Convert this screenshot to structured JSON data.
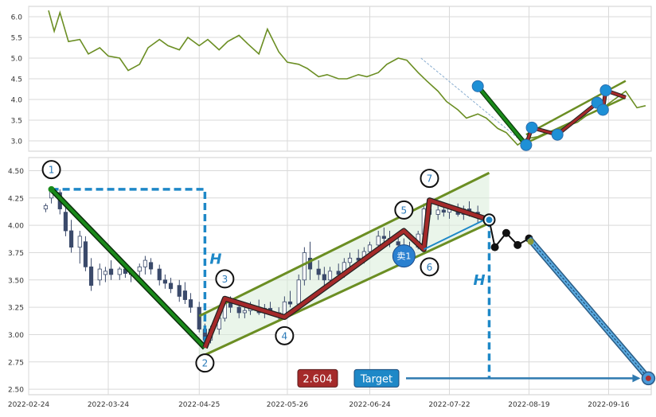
{
  "chart_data": [
    {
      "type": "line",
      "panel": "overview",
      "title": "",
      "xlabel": "",
      "ylabel": "",
      "ylim": [
        2.75,
        6.25
      ],
      "yticks": [
        "3.0",
        "3.5",
        "4.0",
        "4.5",
        "5.0",
        "5.5",
        "6.0"
      ],
      "grid": true,
      "colors": {
        "line": "#6b8e23",
        "trend": "#1a8a1a",
        "zigzag": "#a52a2a",
        "pivot": "#1e90d6",
        "channel": "#6b8e23"
      },
      "series": [
        {
          "x": [
            "2022-03-03",
            "2022-03-05",
            "2022-03-07",
            "2022-03-10",
            "2022-03-14",
            "2022-03-17",
            "2022-03-21",
            "2022-03-24",
            "2022-03-28",
            "2022-03-31",
            "2022-04-04",
            "2022-04-07",
            "2022-04-11",
            "2022-04-14",
            "2022-04-18",
            "2022-04-21",
            "2022-04-25",
            "2022-04-28",
            "2022-05-02",
            "2022-05-05",
            "2022-05-09",
            "2022-05-12",
            "2022-05-16",
            "2022-05-19",
            "2022-05-23",
            "2022-05-26",
            "2022-05-30",
            "2022-06-02",
            "2022-06-06",
            "2022-06-09",
            "2022-06-13",
            "2022-06-16",
            "2022-06-20",
            "2022-06-23",
            "2022-06-27",
            "2022-06-30",
            "2022-07-04",
            "2022-07-07",
            "2022-07-11",
            "2022-07-14",
            "2022-07-18",
            "2022-07-21",
            "2022-07-25",
            "2022-07-28",
            "2022-08-01",
            "2022-08-04",
            "2022-08-08",
            "2022-08-11",
            "2022-08-15",
            "2022-08-18",
            "2022-08-22",
            "2022-08-25",
            "2022-08-29",
            "2022-09-01",
            "2022-09-05",
            "2022-09-08",
            "2022-09-12",
            "2022-09-15",
            "2022-09-19",
            "2022-09-22",
            "2022-09-26",
            "2022-09-29"
          ],
          "values": [
            6.15,
            5.65,
            6.1,
            5.4,
            5.45,
            5.1,
            5.25,
            5.05,
            5.0,
            4.7,
            4.85,
            5.25,
            5.45,
            5.3,
            5.2,
            5.5,
            5.3,
            5.45,
            5.2,
            5.4,
            5.55,
            5.35,
            5.1,
            5.7,
            5.15,
            4.9,
            4.85,
            4.75,
            4.55,
            4.6,
            4.5,
            4.5,
            4.6,
            4.55,
            4.65,
            4.85,
            5.0,
            4.95,
            4.65,
            4.45,
            4.2,
            3.95,
            3.75,
            3.55,
            3.65,
            3.55,
            3.3,
            3.2,
            2.9,
            3.05,
            3.1,
            3.2,
            3.25,
            3.35,
            3.45,
            3.6,
            3.75,
            3.85,
            4.05,
            4.2,
            3.8,
            3.85
          ]
        }
      ],
      "pivots": [
        {
          "x": "2022-08-01",
          "y": 4.32
        },
        {
          "x": "2022-08-18",
          "y": 2.9
        },
        {
          "x": "2022-08-20",
          "y": 3.32
        },
        {
          "x": "2022-08-29",
          "y": 3.15
        },
        {
          "x": "2022-09-12",
          "y": 3.92
        },
        {
          "x": "2022-09-14",
          "y": 3.75
        },
        {
          "x": "2022-09-15",
          "y": 4.22
        }
      ],
      "zigzag": [
        {
          "x": "2022-08-18",
          "y": 2.9
        },
        {
          "x": "2022-08-20",
          "y": 3.32
        },
        {
          "x": "2022-08-29",
          "y": 3.15
        },
        {
          "x": "2022-09-12",
          "y": 3.92
        },
        {
          "x": "2022-09-14",
          "y": 3.75
        },
        {
          "x": "2022-09-15",
          "y": 4.22
        },
        {
          "x": "2022-09-22",
          "y": 4.05
        }
      ],
      "channel": [
        [
          {
            "x": "2022-08-18",
            "y": 3.15
          },
          {
            "x": "2022-09-22",
            "y": 4.45
          }
        ],
        [
          {
            "x": "2022-08-18",
            "y": 2.95
          },
          {
            "x": "2022-09-22",
            "y": 4.05
          }
        ]
      ],
      "trend": [
        {
          "x": "2022-08-01",
          "y": 4.32
        },
        {
          "x": "2022-08-18",
          "y": 2.9
        }
      ],
      "arrow": [
        {
          "x": "2022-07-12",
          "y": 5.0
        },
        {
          "x": "2022-08-18",
          "y": 2.9
        }
      ]
    },
    {
      "type": "candlestick",
      "panel": "detail",
      "title": "",
      "xlabel": "",
      "ylabel": "",
      "ylim": [
        2.45,
        4.62
      ],
      "xlim": [
        "2022-02-24",
        "2022-10-01"
      ],
      "yticks": [
        "2.50",
        "2.75",
        "3.00",
        "3.25",
        "3.50",
        "3.75",
        "4.00",
        "4.25",
        "4.50"
      ],
      "xticks": [
        "2022-02-24",
        "2022-03-24",
        "2022-04-25",
        "2022-05-26",
        "2022-06-24",
        "2022-07-22",
        "2022-08-19",
        "2022-09-16"
      ],
      "grid": true,
      "colors": {
        "candle": "#3b4a6b",
        "trend": "#1a8a1a",
        "zigzag": "#a52a2a",
        "channel": "#6b8e23",
        "channel_fill": "#d8ecd8",
        "guide": "#1e88c7",
        "target_box": "#1e88c7",
        "price_box": "#a52a2a"
      },
      "candles": [
        {
          "x": "2022-03-02",
          "o": 4.15,
          "h": 4.2,
          "l": 4.12,
          "c": 4.18
        },
        {
          "x": "2022-03-04",
          "o": 4.25,
          "h": 4.35,
          "l": 4.2,
          "c": 4.32
        },
        {
          "x": "2022-03-07",
          "o": 4.3,
          "h": 4.33,
          "l": 4.1,
          "c": 4.15
        },
        {
          "x": "2022-03-09",
          "o": 4.12,
          "h": 4.18,
          "l": 3.9,
          "c": 3.95
        },
        {
          "x": "2022-03-11",
          "o": 3.95,
          "h": 4.05,
          "l": 3.75,
          "c": 3.8
        },
        {
          "x": "2022-03-14",
          "o": 3.8,
          "h": 3.95,
          "l": 3.65,
          "c": 3.9
        },
        {
          "x": "2022-03-16",
          "o": 3.85,
          "h": 3.9,
          "l": 3.58,
          "c": 3.62
        },
        {
          "x": "2022-03-18",
          "o": 3.62,
          "h": 3.7,
          "l": 3.4,
          "c": 3.45
        },
        {
          "x": "2022-03-21",
          "o": 3.5,
          "h": 3.65,
          "l": 3.45,
          "c": 3.6
        },
        {
          "x": "2022-03-23",
          "o": 3.55,
          "h": 3.62,
          "l": 3.48,
          "c": 3.58
        },
        {
          "x": "2022-03-25",
          "o": 3.6,
          "h": 3.68,
          "l": 3.5,
          "c": 3.55
        },
        {
          "x": "2022-03-28",
          "o": 3.55,
          "h": 3.62,
          "l": 3.5,
          "c": 3.6
        },
        {
          "x": "2022-03-30",
          "o": 3.6,
          "h": 3.66,
          "l": 3.52,
          "c": 3.56
        },
        {
          "x": "2022-04-01",
          "o": 3.55,
          "h": 3.6,
          "l": 3.48,
          "c": 3.57
        },
        {
          "x": "2022-04-04",
          "o": 3.58,
          "h": 3.65,
          "l": 3.52,
          "c": 3.62
        },
        {
          "x": "2022-04-06",
          "o": 3.62,
          "h": 3.72,
          "l": 3.55,
          "c": 3.68
        },
        {
          "x": "2022-04-08",
          "o": 3.66,
          "h": 3.7,
          "l": 3.55,
          "c": 3.6
        },
        {
          "x": "2022-04-11",
          "o": 3.6,
          "h": 3.64,
          "l": 3.45,
          "c": 3.5
        },
        {
          "x": "2022-04-13",
          "o": 3.5,
          "h": 3.55,
          "l": 3.42,
          "c": 3.47
        },
        {
          "x": "2022-04-15",
          "o": 3.47,
          "h": 3.52,
          "l": 3.38,
          "c": 3.42
        },
        {
          "x": "2022-04-18",
          "o": 3.45,
          "h": 3.5,
          "l": 3.3,
          "c": 3.35
        },
        {
          "x": "2022-04-20",
          "o": 3.4,
          "h": 3.48,
          "l": 3.28,
          "c": 3.32
        },
        {
          "x": "2022-04-22",
          "o": 3.32,
          "h": 3.38,
          "l": 3.2,
          "c": 3.25
        },
        {
          "x": "2022-04-25",
          "o": 3.25,
          "h": 3.3,
          "l": 3.02,
          "c": 3.05
        },
        {
          "x": "2022-04-27",
          "o": 3.05,
          "h": 3.1,
          "l": 2.88,
          "c": 2.95
        },
        {
          "x": "2022-04-29",
          "o": 2.95,
          "h": 3.08,
          "l": 2.92,
          "c": 3.05
        },
        {
          "x": "2022-05-02",
          "o": 3.05,
          "h": 3.2,
          "l": 3.0,
          "c": 3.15
        },
        {
          "x": "2022-05-04",
          "o": 3.15,
          "h": 3.34,
          "l": 3.12,
          "c": 3.3
        },
        {
          "x": "2022-05-06",
          "o": 3.3,
          "h": 3.35,
          "l": 3.2,
          "c": 3.25
        },
        {
          "x": "2022-05-09",
          "o": 3.25,
          "h": 3.3,
          "l": 3.15,
          "c": 3.2
        },
        {
          "x": "2022-05-11",
          "o": 3.2,
          "h": 3.28,
          "l": 3.15,
          "c": 3.22
        },
        {
          "x": "2022-05-13",
          "o": 3.22,
          "h": 3.3,
          "l": 3.18,
          "c": 3.26
        },
        {
          "x": "2022-05-16",
          "o": 3.25,
          "h": 3.32,
          "l": 3.18,
          "c": 3.2
        },
        {
          "x": "2022-05-18",
          "o": 3.2,
          "h": 3.28,
          "l": 3.15,
          "c": 3.24
        },
        {
          "x": "2022-05-20",
          "o": 3.24,
          "h": 3.3,
          "l": 3.18,
          "c": 3.22
        },
        {
          "x": "2022-05-23",
          "o": 3.2,
          "h": 3.25,
          "l": 3.12,
          "c": 3.18
        },
        {
          "x": "2022-05-25",
          "o": 3.18,
          "h": 3.35,
          "l": 3.15,
          "c": 3.3
        },
        {
          "x": "2022-05-27",
          "o": 3.3,
          "h": 3.4,
          "l": 3.25,
          "c": 3.28
        },
        {
          "x": "2022-05-30",
          "o": 3.28,
          "h": 3.55,
          "l": 3.25,
          "c": 3.5
        },
        {
          "x": "2022-06-01",
          "o": 3.5,
          "h": 3.8,
          "l": 3.45,
          "c": 3.75
        },
        {
          "x": "2022-06-03",
          "o": 3.7,
          "h": 3.85,
          "l": 3.5,
          "c": 3.6
        },
        {
          "x": "2022-06-06",
          "o": 3.6,
          "h": 3.68,
          "l": 3.5,
          "c": 3.55
        },
        {
          "x": "2022-06-08",
          "o": 3.55,
          "h": 3.62,
          "l": 3.45,
          "c": 3.5
        },
        {
          "x": "2022-06-10",
          "o": 3.5,
          "h": 3.62,
          "l": 3.48,
          "c": 3.58
        },
        {
          "x": "2022-06-13",
          "o": 3.58,
          "h": 3.65,
          "l": 3.5,
          "c": 3.55
        },
        {
          "x": "2022-06-15",
          "o": 3.55,
          "h": 3.7,
          "l": 3.52,
          "c": 3.66
        },
        {
          "x": "2022-06-17",
          "o": 3.66,
          "h": 3.75,
          "l": 3.6,
          "c": 3.7
        },
        {
          "x": "2022-06-20",
          "o": 3.7,
          "h": 3.78,
          "l": 3.62,
          "c": 3.68
        },
        {
          "x": "2022-06-22",
          "o": 3.68,
          "h": 3.8,
          "l": 3.65,
          "c": 3.76
        },
        {
          "x": "2022-06-24",
          "o": 3.76,
          "h": 3.85,
          "l": 3.7,
          "c": 3.82
        },
        {
          "x": "2022-06-27",
          "o": 3.82,
          "h": 3.95,
          "l": 3.78,
          "c": 3.9
        },
        {
          "x": "2022-06-29",
          "o": 3.9,
          "h": 3.98,
          "l": 3.82,
          "c": 3.88
        },
        {
          "x": "2022-07-01",
          "o": 3.88,
          "h": 3.95,
          "l": 3.8,
          "c": 3.85
        },
        {
          "x": "2022-07-04",
          "o": 3.85,
          "h": 3.9,
          "l": 3.78,
          "c": 3.82
        },
        {
          "x": "2022-07-06",
          "o": 3.82,
          "h": 3.88,
          "l": 3.76,
          "c": 3.8
        },
        {
          "x": "2022-07-08",
          "o": 3.8,
          "h": 3.85,
          "l": 3.74,
          "c": 3.78
        },
        {
          "x": "2022-07-11",
          "o": 3.8,
          "h": 3.95,
          "l": 3.78,
          "c": 3.92
        },
        {
          "x": "2022-07-13",
          "o": 3.92,
          "h": 4.2,
          "l": 3.9,
          "c": 4.15
        },
        {
          "x": "2022-07-15",
          "o": 4.15,
          "h": 4.22,
          "l": 4.05,
          "c": 4.1
        },
        {
          "x": "2022-07-18",
          "o": 4.1,
          "h": 4.18,
          "l": 4.05,
          "c": 4.14
        },
        {
          "x": "2022-07-20",
          "o": 4.14,
          "h": 4.2,
          "l": 4.08,
          "c": 4.12
        },
        {
          "x": "2022-07-22",
          "o": 4.12,
          "h": 4.18,
          "l": 4.06,
          "c": 4.15
        },
        {
          "x": "2022-07-25",
          "o": 4.15,
          "h": 4.2,
          "l": 4.08,
          "c": 4.1
        },
        {
          "x": "2022-07-27",
          "o": 4.1,
          "h": 4.18,
          "l": 4.05,
          "c": 4.15
        },
        {
          "x": "2022-07-29",
          "o": 4.15,
          "h": 4.22,
          "l": 4.08,
          "c": 4.12
        },
        {
          "x": "2022-08-01",
          "o": 4.12,
          "h": 4.18,
          "l": 4.02,
          "c": 4.08
        }
      ],
      "trend": [
        {
          "x": "2022-03-04",
          "y": 4.33
        },
        {
          "x": "2022-04-27",
          "y": 2.88
        }
      ],
      "zigzag": [
        {
          "x": "2022-04-27",
          "y": 2.88
        },
        {
          "x": "2022-05-04",
          "y": 3.33
        },
        {
          "x": "2022-05-25",
          "y": 3.16
        },
        {
          "x": "2022-07-06",
          "y": 3.95
        },
        {
          "x": "2022-07-13",
          "y": 3.78
        },
        {
          "x": "2022-07-15",
          "y": 4.23
        },
        {
          "x": "2022-08-05",
          "y": 4.05
        }
      ],
      "channel": [
        [
          {
            "x": "2022-04-25",
            "y": 3.17
          },
          {
            "x": "2022-08-05",
            "y": 4.48
          }
        ],
        [
          {
            "x": "2022-04-25",
            "y": 2.79
          },
          {
            "x": "2022-08-05",
            "y": 4.02
          }
        ]
      ],
      "projection": [
        {
          "x": "2022-08-05",
          "y": 4.05
        },
        {
          "x": "2022-08-07",
          "y": 3.8
        },
        {
          "x": "2022-08-11",
          "y": 3.93
        },
        {
          "x": "2022-08-15",
          "y": 3.82
        },
        {
          "x": "2022-08-19",
          "y": 3.88
        },
        {
          "x": "2022-09-30",
          "y": 2.6
        }
      ],
      "h_guides": [
        {
          "label": "H",
          "from": {
            "x": "2022-03-04",
            "y": 4.33
          },
          "to": {
            "x": "2022-04-27",
            "y": 2.88
          }
        },
        {
          "label": "H",
          "from": {
            "x": "2022-08-05",
            "y": 4.05
          },
          "to": {
            "x": "2022-08-05",
            "y": 2.6
          }
        }
      ],
      "waves": [
        {
          "label": "1",
          "x": "2022-03-04",
          "y": 4.51
        },
        {
          "label": "2",
          "x": "2022-04-27",
          "y": 2.74
        },
        {
          "label": "3",
          "x": "2022-05-04",
          "y": 3.51
        },
        {
          "label": "4",
          "x": "2022-05-25",
          "y": 2.99
        },
        {
          "label": "5",
          "x": "2022-07-06",
          "y": 4.14
        },
        {
          "label": "6",
          "x": "2022-07-15",
          "y": 3.62
        },
        {
          "label": "7",
          "x": "2022-07-15",
          "y": 4.43
        }
      ],
      "sell_marker": {
        "label": "卖1",
        "x": "2022-07-06",
        "y": 3.72
      },
      "target_price": "2.604",
      "target_label": "Target"
    }
  ]
}
